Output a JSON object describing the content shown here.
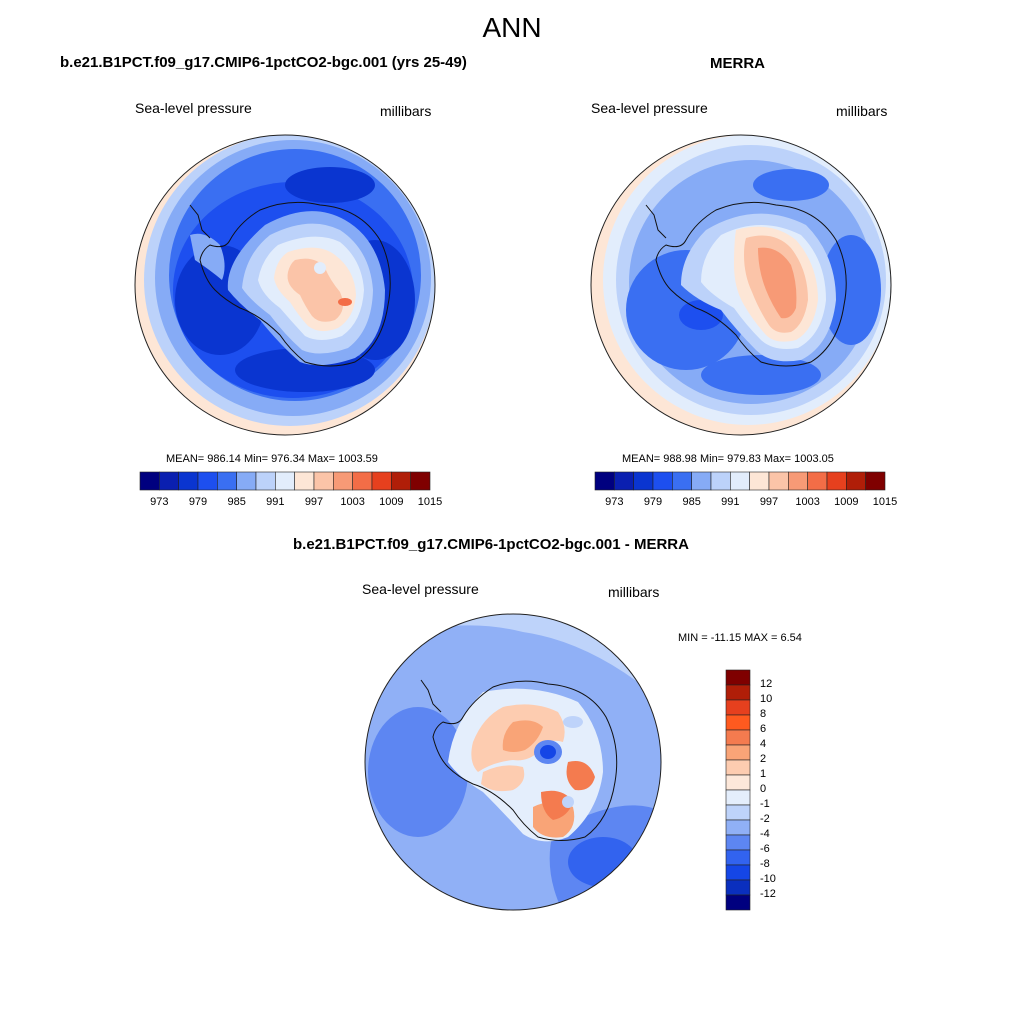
{
  "figure": {
    "title": "ANN"
  },
  "panels": [
    {
      "id": "model",
      "title": "b.e21.B1PCT.f09_g17.CMIP6-1pctCO2-bgc.001 (yrs 25-49)",
      "left_label": "Sea-level pressure",
      "right_label": "millibars",
      "stats": "MEAN= 986.14  Min= 976.34  Max= 1003.59",
      "colorbar_ticks": [
        "973",
        "979",
        "985",
        "991",
        "997",
        "1003",
        "1009",
        "1015"
      ]
    },
    {
      "id": "merra",
      "title": "MERRA",
      "left_label": "Sea-level pressure",
      "right_label": "millibars",
      "stats": "MEAN= 988.98  Min= 979.83  Max= 1003.05",
      "colorbar_ticks": [
        "973",
        "979",
        "985",
        "991",
        "997",
        "1003",
        "1009",
        "1015"
      ]
    },
    {
      "id": "diff",
      "title": "b.e21.B1PCT.f09_g17.CMIP6-1pctCO2-bgc.001 - MERRA",
      "left_label": "Sea-level pressure",
      "right_label": "millibars",
      "stats": "MIN = -11.15 MAX =   6.54",
      "colorbar_ticks": [
        "12",
        "10",
        "8",
        "6",
        "4",
        "2",
        "1",
        "0",
        "-1",
        "-2",
        "-4",
        "-6",
        "-8",
        "-10",
        "-12"
      ]
    }
  ],
  "colors": {
    "abs_scale": [
      "#00007f",
      "#0a1fb0",
      "#0a35d0",
      "#1d4fef",
      "#3a6ff2",
      "#86abf6",
      "#bcd2fa",
      "#e2edfc",
      "#fde6d6",
      "#fbc4a8",
      "#f79a76",
      "#f36d47",
      "#e6401e",
      "#b01e08",
      "#7f0000"
    ],
    "diff_scale": [
      "#7f0000",
      "#b01e08",
      "#e6401e",
      "#ff5a1f",
      "#f47b4f",
      "#f9a477",
      "#fdccb0",
      "#fde8da",
      "#e4eefc",
      "#bed3fa",
      "#90b0f6",
      "#5d86f2",
      "#3263ef",
      "#1546e6",
      "#0a2fbe",
      "#00007f"
    ]
  }
}
